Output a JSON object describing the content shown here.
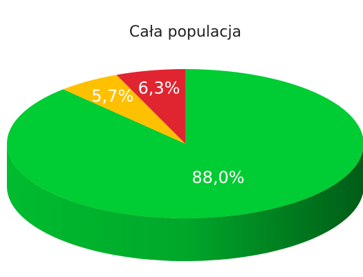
{
  "chart_data": {
    "type": "pie",
    "title": "Cała populacja",
    "series": [
      {
        "values": [
          88.0,
          5.7,
          6.3
        ],
        "value_labels": [
          "88,0%",
          "5,7%",
          "6,3%"
        ],
        "colors": [
          "#00cc33",
          "#ffc000",
          "#e02530"
        ]
      }
    ]
  }
}
